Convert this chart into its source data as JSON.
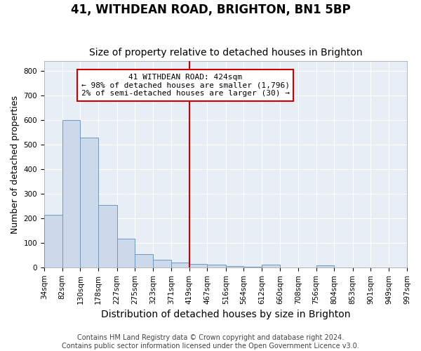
{
  "title": "41, WITHDEAN ROAD, BRIGHTON, BN1 5BP",
  "subtitle": "Size of property relative to detached houses in Brighton",
  "xlabel": "Distribution of detached houses by size in Brighton",
  "ylabel": "Number of detached properties",
  "bar_color": "#ccd9ea",
  "bar_edge_color": "#7098c0",
  "plot_bg_color": "#e8eef5",
  "fig_bg_color": "#ffffff",
  "grid_color": "#ffffff",
  "annotation_box_color": "#cc0000",
  "vline_color": "#cc0000",
  "vline_x": 419,
  "annotation_text": "41 WITHDEAN ROAD: 424sqm\n← 98% of detached houses are smaller (1,796)\n2% of semi-detached houses are larger (30) →",
  "footer_text": "Contains HM Land Registry data © Crown copyright and database right 2024.\nContains public sector information licensed under the Open Government Licence v3.0.",
  "bin_edges": [
    34,
    82,
    130,
    178,
    227,
    275,
    323,
    371,
    419,
    467,
    516,
    564,
    612,
    660,
    708,
    756,
    804,
    853,
    901,
    949,
    997
  ],
  "bin_counts": [
    215,
    600,
    528,
    255,
    117,
    53,
    32,
    20,
    15,
    10,
    5,
    2,
    10,
    0,
    0,
    8,
    0,
    0,
    0,
    0
  ],
  "tick_labels": [
    "34sqm",
    "82sqm",
    "130sqm",
    "178sqm",
    "227sqm",
    "275sqm",
    "323sqm",
    "371sqm",
    "419sqm",
    "467sqm",
    "516sqm",
    "564sqm",
    "612sqm",
    "660sqm",
    "708sqm",
    "756sqm",
    "804sqm",
    "853sqm",
    "901sqm",
    "949sqm",
    "997sqm"
  ],
  "ylim": [
    0,
    840
  ],
  "yticks": [
    0,
    100,
    200,
    300,
    400,
    500,
    600,
    700,
    800
  ],
  "title_fontsize": 12,
  "subtitle_fontsize": 10,
  "xlabel_fontsize": 10,
  "ylabel_fontsize": 9,
  "tick_fontsize": 7.5,
  "annotation_fontsize": 8,
  "footer_fontsize": 7
}
